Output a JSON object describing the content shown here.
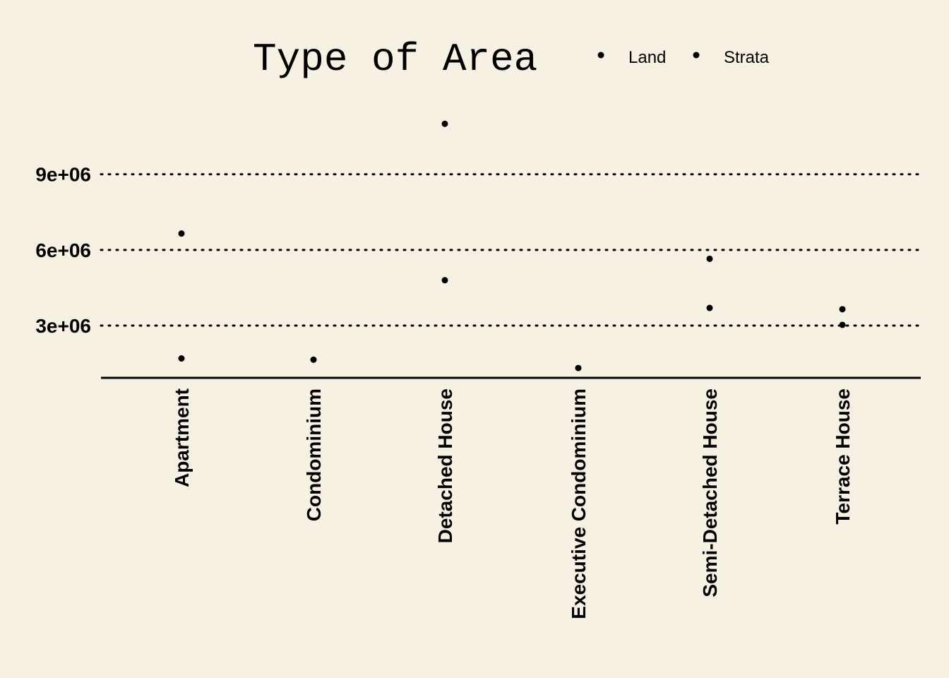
{
  "chart_data": {
    "type": "scatter",
    "title": "Type of Area",
    "xlabel": "",
    "ylabel": "",
    "categories": [
      "Apartment",
      "Condominium",
      "Detached House",
      "Executive Condominium",
      "Semi-Detached House",
      "Terrace House"
    ],
    "series": [
      {
        "name": "Land",
        "values": [
          null,
          null,
          11000000,
          null,
          5650000,
          3650000
        ]
      },
      {
        "name": "Strata",
        "values": [
          6650000,
          1650000,
          null,
          1320000,
          null,
          null
        ]
      },
      {
        "name": "Land",
        "values": [
          null,
          null,
          4800000,
          null,
          3700000,
          3030000
        ]
      },
      {
        "name": "Strata",
        "values": [
          1700000,
          null,
          null,
          null,
          null,
          null
        ]
      }
    ],
    "legend": {
      "placement": "top-right",
      "entries": [
        "Land",
        "Strata"
      ]
    },
    "yticks": [
      3000000,
      6000000,
      9000000
    ],
    "ytick_labels": [
      "3e+06",
      "6e+06",
      "9e+06"
    ],
    "ylim": [
      930000,
      12100000
    ],
    "grid": {
      "y": true,
      "x": false,
      "style": "dotted"
    },
    "colors": {
      "background": "#f7f1e3",
      "points": "#000000",
      "text": "#000000"
    }
  }
}
